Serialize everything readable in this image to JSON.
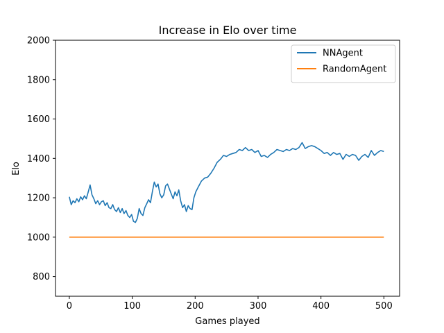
{
  "chart_data": {
    "type": "line",
    "title": "Increase in Elo over time",
    "xlabel": "Games played",
    "ylabel": "Elo",
    "xlim": [
      -22,
      525
    ],
    "ylim": [
      700,
      2000
    ],
    "xticks": [
      0,
      100,
      200,
      300,
      400,
      500
    ],
    "yticks": [
      800,
      1000,
      1200,
      1400,
      1600,
      1800,
      2000
    ],
    "grid": false,
    "legend_position": "top-right",
    "series": [
      {
        "name": "NNAgent",
        "color": "#1f77b4",
        "x": [
          0,
          3,
          6,
          9,
          12,
          15,
          18,
          21,
          24,
          27,
          30,
          33,
          36,
          39,
          42,
          45,
          48,
          51,
          54,
          57,
          60,
          63,
          66,
          69,
          72,
          75,
          78,
          81,
          84,
          87,
          90,
          93,
          96,
          99,
          102,
          105,
          108,
          111,
          114,
          117,
          120,
          123,
          126,
          129,
          132,
          135,
          138,
          141,
          144,
          147,
          150,
          153,
          156,
          159,
          162,
          165,
          168,
          171,
          174,
          177,
          180,
          183,
          186,
          189,
          192,
          195,
          198,
          201,
          205,
          210,
          215,
          220,
          225,
          230,
          235,
          240,
          245,
          250,
          255,
          260,
          265,
          270,
          275,
          280,
          285,
          290,
          295,
          300,
          305,
          310,
          315,
          320,
          325,
          330,
          335,
          340,
          345,
          350,
          355,
          360,
          365,
          370,
          375,
          380,
          385,
          390,
          395,
          400,
          405,
          410,
          415,
          420,
          425,
          430,
          435,
          440,
          445,
          450,
          455,
          460,
          465,
          470,
          475,
          480,
          485,
          490,
          495,
          500
        ],
        "values": [
          1205,
          1165,
          1185,
          1175,
          1195,
          1180,
          1205,
          1190,
          1210,
          1195,
          1230,
          1265,
          1215,
          1195,
          1170,
          1185,
          1165,
          1180,
          1185,
          1160,
          1175,
          1150,
          1145,
          1165,
          1140,
          1130,
          1150,
          1125,
          1145,
          1120,
          1135,
          1110,
          1100,
          1115,
          1080,
          1075,
          1095,
          1145,
          1120,
          1110,
          1150,
          1170,
          1190,
          1175,
          1230,
          1280,
          1255,
          1270,
          1220,
          1200,
          1215,
          1260,
          1270,
          1245,
          1220,
          1195,
          1230,
          1210,
          1240,
          1185,
          1150,
          1165,
          1130,
          1160,
          1145,
          1140,
          1200,
          1230,
          1255,
          1285,
          1300,
          1305,
          1325,
          1350,
          1380,
          1395,
          1415,
          1410,
          1420,
          1425,
          1430,
          1445,
          1440,
          1455,
          1440,
          1445,
          1430,
          1440,
          1410,
          1415,
          1405,
          1420,
          1430,
          1445,
          1440,
          1435,
          1445,
          1440,
          1450,
          1445,
          1455,
          1480,
          1450,
          1460,
          1465,
          1460,
          1450,
          1440,
          1425,
          1430,
          1415,
          1430,
          1420,
          1425,
          1395,
          1420,
          1410,
          1420,
          1415,
          1390,
          1410,
          1420,
          1405,
          1440,
          1415,
          1430,
          1440,
          1435
        ]
      },
      {
        "name": "RandomAgent",
        "color": "#ff7f0e",
        "x": [
          0,
          500
        ],
        "values": [
          1000,
          1000
        ]
      }
    ]
  }
}
